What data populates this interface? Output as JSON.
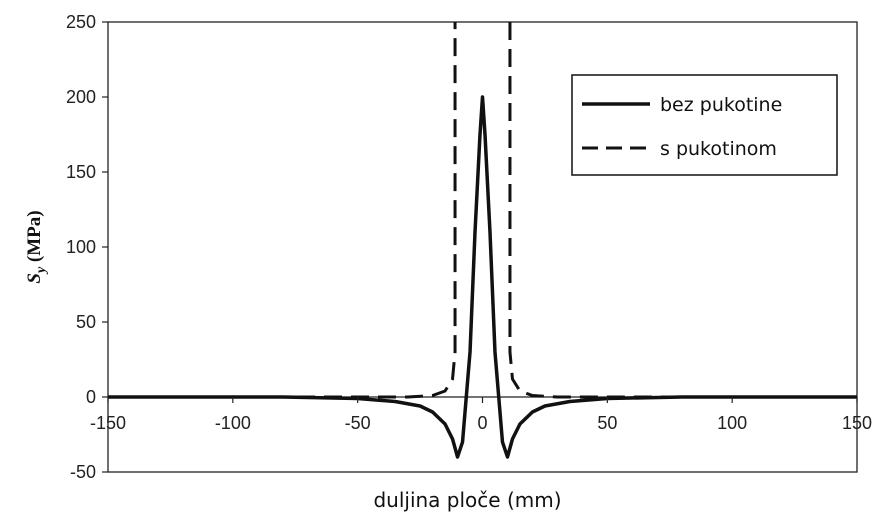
{
  "chart_data": {
    "type": "line",
    "xlabel": "duljina ploče (mm)",
    "ylabel": "Sy (MPa)",
    "ylabel_main": "S",
    "ylabel_sub": "y",
    "ylabel_unit": " (MPa)",
    "xlim": [
      -150,
      150
    ],
    "ylim": [
      -50,
      250
    ],
    "xticks": [
      -150,
      -100,
      -50,
      0,
      50,
      100,
      150
    ],
    "yticks": [
      -50,
      0,
      50,
      100,
      150,
      200,
      250
    ],
    "xtick_labels": [
      "-150",
      "-100",
      "-50",
      "0",
      "50",
      "100",
      "150"
    ],
    "ytick_labels": [
      "-50",
      "0",
      "50",
      "100",
      "150",
      "200",
      "250"
    ],
    "grid": false,
    "legend_position": "top-right",
    "series": [
      {
        "name": "bez pukotine",
        "style": "solid",
        "color": "#111111",
        "x": [
          -150,
          -80,
          -50,
          -35,
          -25,
          -20,
          -15,
          -12,
          -10,
          -8,
          -5,
          -3,
          -1,
          0,
          1,
          3,
          5,
          8,
          10,
          12,
          15,
          20,
          25,
          35,
          50,
          80,
          150
        ],
        "y": [
          0,
          0,
          -1,
          -3,
          -6,
          -10,
          -18,
          -28,
          -40,
          -30,
          30,
          110,
          175,
          200,
          175,
          110,
          30,
          -30,
          -40,
          -28,
          -18,
          -10,
          -6,
          -3,
          -1,
          0,
          0
        ]
      },
      {
        "name": "s pukotinom",
        "style": "dashed",
        "color": "#111111",
        "x": [
          -150,
          -50,
          -30,
          -20,
          -15,
          -12,
          -11,
          -11,
          -11,
          null,
          11,
          11,
          11,
          12,
          15,
          20,
          30,
          50,
          150
        ],
        "y": [
          0,
          0,
          0,
          1,
          4,
          12,
          30,
          120,
          260,
          null,
          260,
          120,
          30,
          12,
          4,
          1,
          0,
          0,
          0
        ]
      }
    ]
  }
}
